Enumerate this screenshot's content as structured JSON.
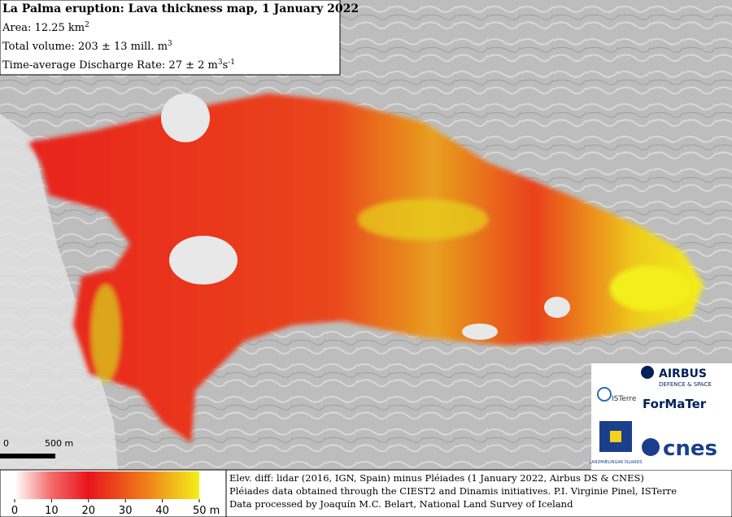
{
  "header": {
    "title": "La Palma eruption: Lava thickness map, 1 January 2022",
    "lines": [
      [
        {
          "text": "Area: 12.25 km"
        },
        {
          "sup": "2"
        }
      ],
      [
        {
          "text": "Total volume: 203 ± 13 mill. m"
        },
        {
          "sup": "3"
        }
      ],
      [
        {
          "text": "Time-average Discharge Rate: 27 ± 2 m"
        },
        {
          "sup": "3"
        },
        {
          "text": "s"
        },
        {
          "sup": "-1"
        }
      ]
    ]
  },
  "scale_bar": {
    "start": "0",
    "end": "500 m"
  },
  "colorbar": {
    "range": [
      0,
      50
    ],
    "ticks": [
      0,
      10,
      20,
      30,
      40,
      {
        "value": 50,
        "label": "50 m"
      }
    ]
  },
  "credits": [
    "Elev. diff: lidar (2016, IGN, Spain) minus Pléiades (1 January 2022, Airbus DS & CNES)",
    "Pléiades data obtained through the CIEST2 and Dinamis initiatives. P.I. Virginie Pinel, ISTerre",
    "Data processed by Joaquín M.C. Belart, National Land Survey of Iceland"
  ],
  "logos": {
    "airbus": "AIRBUS",
    "airbus_sub": "DEFENCE & SPACE",
    "isterre": "ISTerre",
    "formater": "ForMaTer",
    "lmi": "LANDMÆLINGAR ÍSLANDS",
    "cnes": "cnes"
  }
}
